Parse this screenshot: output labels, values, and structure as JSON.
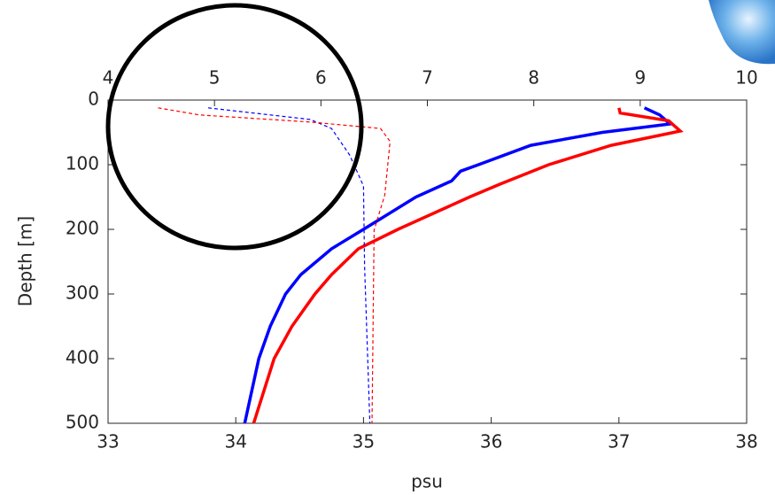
{
  "chart_data": {
    "type": "line",
    "xlabel": "psu",
    "ylabel": "Depth [m]",
    "xlim": [
      33,
      38
    ],
    "xticks": [
      33,
      34,
      35,
      36,
      37,
      38
    ],
    "x2lim": [
      4,
      10
    ],
    "x2ticks": [
      4,
      5,
      6,
      7,
      8,
      9,
      10
    ],
    "ylim": [
      0,
      500
    ],
    "yticks": [
      0,
      100,
      200,
      300,
      400,
      500
    ],
    "y_reversed": true,
    "series": [
      {
        "color": "#0000ff",
        "linestyle": "solid",
        "axis": "x",
        "x": [
          37.2,
          37.32,
          37.4,
          36.87,
          36.31,
          35.9,
          35.76,
          35.69,
          35.41,
          35.0,
          34.75,
          34.51,
          34.39,
          34.27,
          34.18,
          34.07
        ],
        "y": [
          12,
          23,
          37,
          50,
          70,
          100,
          110,
          125,
          150,
          200,
          230,
          270,
          300,
          350,
          400,
          500
        ]
      },
      {
        "color": "#ff0000",
        "linestyle": "solid",
        "axis": "x",
        "x": [
          37.0,
          37.01,
          37.39,
          37.48,
          36.94,
          36.45,
          36.07,
          35.83,
          35.27,
          34.96,
          34.75,
          34.62,
          34.44,
          34.3,
          34.14
        ],
        "y": [
          12,
          20,
          32,
          48,
          70,
          100,
          130,
          150,
          200,
          230,
          270,
          300,
          350,
          400,
          500
        ]
      },
      {
        "color": "#0000ff",
        "linestyle": "dashed",
        "axis": "x2",
        "x": [
          4.94,
          5.15,
          5.9,
          6.1,
          6.27,
          6.4,
          6.41,
          6.46
        ],
        "y": [
          12,
          16,
          30,
          44,
          85,
          133,
          256,
          500
        ]
      },
      {
        "color": "#ff0000",
        "linestyle": "dashed",
        "axis": "x2",
        "x": [
          4.47,
          4.86,
          5.9,
          6.56,
          6.65,
          6.6,
          6.5,
          6.48
        ],
        "y": [
          12,
          23,
          34,
          44,
          64,
          147,
          201,
          500
        ]
      }
    ]
  }
}
